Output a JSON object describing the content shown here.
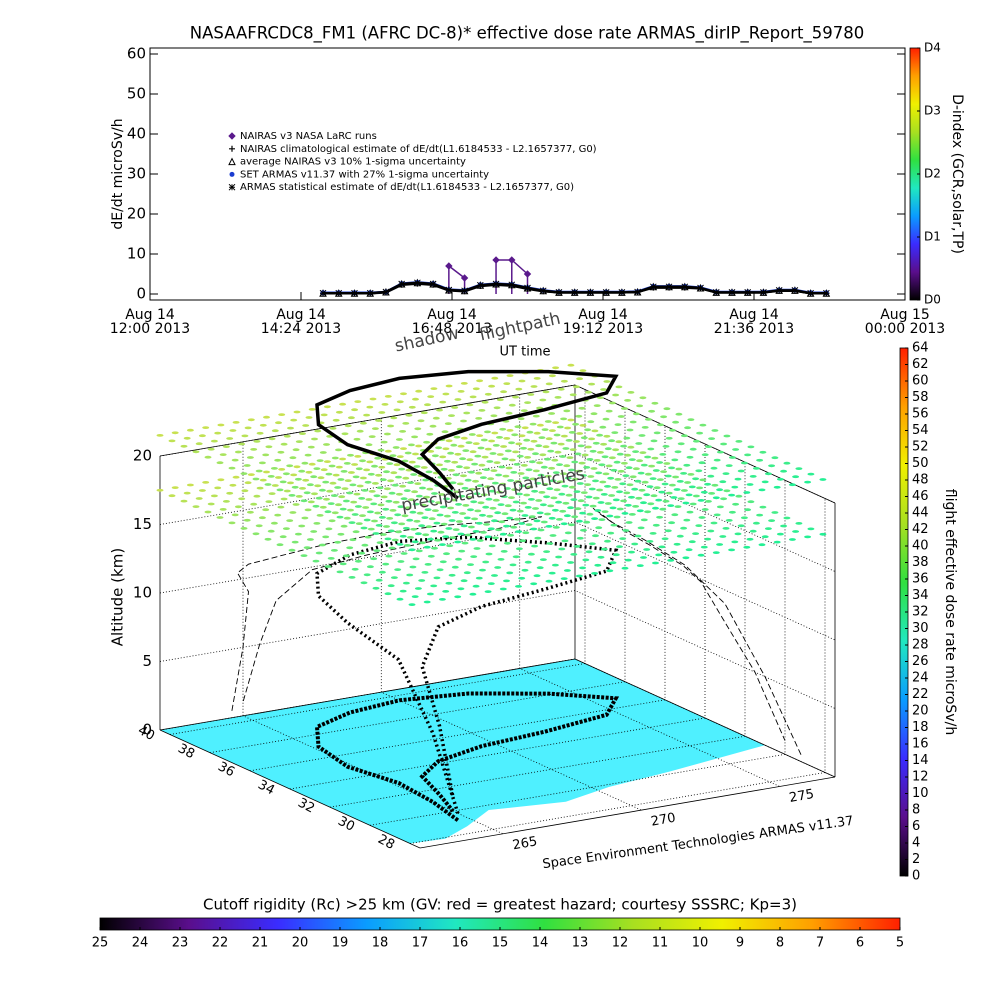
{
  "chart_data": [
    {
      "type": "line",
      "title": "NASAAFRCDC8_FM1 (AFRC DC-8)* effective dose rate ARMAS_dirIP_Report_59780",
      "y_label": "dE/dt microSv/h",
      "x_label": "UT time",
      "x": [
        "2013-08-14 14:45",
        "2013-08-14 15:00",
        "2013-08-14 15:15",
        "2013-08-14 15:30",
        "2013-08-14 15:45",
        "2013-08-14 16:00",
        "2013-08-14 16:15",
        "2013-08-14 16:30",
        "2013-08-14 16:45",
        "2013-08-14 17:00",
        "2013-08-14 17:15",
        "2013-08-14 17:30",
        "2013-08-14 17:45",
        "2013-08-14 18:00",
        "2013-08-14 18:15",
        "2013-08-14 18:30",
        "2013-08-14 18:45",
        "2013-08-14 19:00",
        "2013-08-14 19:15",
        "2013-08-14 19:30",
        "2013-08-14 19:45",
        "2013-08-14 20:00",
        "2013-08-14 20:15",
        "2013-08-14 20:30",
        "2013-08-14 20:45",
        "2013-08-14 21:00",
        "2013-08-14 21:15",
        "2013-08-14 21:30",
        "2013-08-14 21:45",
        "2013-08-14 22:00",
        "2013-08-14 22:15",
        "2013-08-14 22:30",
        "2013-08-14 22:45"
      ],
      "xlim": [
        "2013-08-14 12:00",
        "2013-08-15 00:00"
      ],
      "xticks": [
        {
          "value": "2013-08-14 12:00",
          "label": [
            "Aug 14",
            "12:00 2013"
          ]
        },
        {
          "value": "2013-08-14 14:24",
          "label": [
            "Aug 14",
            "14:24 2013"
          ]
        },
        {
          "value": "2013-08-14 16:48",
          "label": [
            "Aug 14",
            "16:48 2013"
          ]
        },
        {
          "value": "2013-08-14 19:12",
          "label": [
            "Aug 14",
            "19:12 2013"
          ]
        },
        {
          "value": "2013-08-14 21:36",
          "label": [
            "Aug 14",
            "21:36 2013"
          ]
        },
        {
          "value": "2013-08-15 00:00",
          "label": [
            "Aug 15",
            "00:00 2013"
          ]
        }
      ],
      "ylim": [
        0,
        60
      ],
      "yticks": [
        0,
        10,
        20,
        30,
        40,
        50,
        60
      ],
      "series": [
        {
          "name": "NAIRAS v3 NASA LaRC runs",
          "color": "#5a1a8c",
          "marker": "diamond",
          "values": [
            null,
            null,
            null,
            null,
            null,
            null,
            null,
            null,
            7,
            4,
            null,
            8.5,
            8.5,
            5,
            null,
            null,
            null,
            null,
            null,
            null,
            null,
            null,
            null,
            null,
            null,
            null,
            null,
            null,
            null,
            null,
            null,
            null,
            null
          ]
        },
        {
          "name": "NAIRAS climatological estimate of dE/dt(L1.6184533 - L2.1657377, G0)",
          "color": "#000000",
          "marker": "plus",
          "values": [
            0.2,
            0.2,
            0.2,
            0.2,
            0.4,
            2.3,
            2.6,
            2.3,
            0.9,
            0.7,
            2,
            2.3,
            2.1,
            1.3,
            0.7,
            0.4,
            0.4,
            0.4,
            0.4,
            0.4,
            0.5,
            1.6,
            1.6,
            1.6,
            1.4,
            0.4,
            0.4,
            0.4,
            0.4,
            0.8,
            0.8,
            0.2,
            0.2
          ]
        },
        {
          "name": "average NAIRAS v3 10% 1-sigma uncertainty",
          "color": "#000000",
          "marker": "triangle",
          "values": [
            0.2,
            0.2,
            0.2,
            0.2,
            0.5,
            2.5,
            2.8,
            2.5,
            1,
            0.8,
            2.2,
            2.5,
            2.3,
            1.5,
            0.8,
            0.4,
            0.4,
            0.4,
            0.4,
            0.4,
            0.5,
            1.8,
            1.8,
            1.8,
            1.5,
            0.4,
            0.4,
            0.4,
            0.4,
            0.9,
            0.9,
            0.2,
            0.2
          ]
        },
        {
          "name": "SET ARMAS v11.37 with 27% 1-sigma uncertainty",
          "color": "#1a3cd0",
          "marker": "dot",
          "values": [
            0.3,
            0.3,
            0.3,
            0.3,
            0.5,
            2.6,
            2.9,
            2.6,
            1.1,
            0.9,
            2.3,
            2.6,
            2.4,
            1.6,
            0.9,
            0.5,
            0.5,
            0.5,
            0.5,
            0.5,
            0.6,
            1.9,
            1.9,
            1.9,
            1.6,
            0.5,
            0.5,
            0.5,
            0.5,
            1,
            1,
            0.3,
            0.3
          ]
        },
        {
          "name": "ARMAS statistical estimate of dE/dt(L1.6184533 - L2.1657377, G0)",
          "color": "#000000",
          "marker": "asterisk",
          "values": [
            0.2,
            0.2,
            0.2,
            0.2,
            0.5,
            2.5,
            2.8,
            2.5,
            1,
            0.8,
            2.2,
            2.5,
            2.3,
            1.5,
            0.8,
            0.4,
            0.4,
            0.4,
            0.4,
            0.4,
            0.5,
            1.8,
            1.8,
            1.8,
            1.5,
            0.4,
            0.4,
            0.4,
            0.4,
            0.9,
            0.9,
            0.2,
            0.2
          ]
        }
      ]
    },
    {
      "type": "colorbar",
      "label": "D-index (GCR,solar,TP)",
      "orientation": "vertical",
      "lim": [
        0,
        4
      ],
      "ticks": [
        {
          "value": 0,
          "label": "D0"
        },
        {
          "value": 1,
          "label": "D1"
        },
        {
          "value": 2,
          "label": "D2"
        },
        {
          "value": 3,
          "label": "D3"
        },
        {
          "value": 4,
          "label": "D4"
        }
      ],
      "colors": [
        "#000000",
        "#5a0e8c",
        "#3a2cff",
        "#0a9cff",
        "#20e8c0",
        "#30e040",
        "#a8e020",
        "#f0f000",
        "#ffa000",
        "#ff2000"
      ]
    },
    {
      "type": "surface3d",
      "z_label": "Altitude (km)",
      "zlim": [
        0,
        20
      ],
      "zticks": [
        0,
        5,
        10,
        15,
        20
      ],
      "ylim": [
        40.5,
        27.5
      ],
      "yticks": [
        40,
        38,
        36,
        34,
        32,
        30,
        28
      ],
      "xlim": [
        262,
        277
      ],
      "xticks": [
        265,
        270,
        275
      ],
      "annotations": [
        "flightpath",
        "shadow",
        "precipitating particles"
      ],
      "credit": "Space Environment Technologies ARMAS v11.37"
    },
    {
      "type": "colorbar",
      "label": "flight effective dose rate microSv/h",
      "orientation": "vertical",
      "lim": [
        0,
        64
      ],
      "ticks": [
        0,
        2,
        4,
        6,
        8,
        10,
        12,
        14,
        16,
        18,
        20,
        22,
        24,
        26,
        28,
        30,
        32,
        34,
        36,
        38,
        40,
        42,
        44,
        46,
        48,
        50,
        52,
        54,
        56,
        58,
        60,
        62,
        64
      ],
      "colors": [
        "#000000",
        "#5a0e8c",
        "#3a2cff",
        "#0a9cff",
        "#20e8c0",
        "#30e040",
        "#a8e020",
        "#f0f000",
        "#ffa000",
        "#ff2000"
      ]
    },
    {
      "type": "colorbar",
      "label": "Cutoff rigidity (Rc) >25 km (GV: red = greatest hazard; courtesy SSSRC; Kp=3)",
      "orientation": "horizontal",
      "lim": [
        25,
        5
      ],
      "ticks": [
        25,
        24,
        23,
        22,
        21,
        20,
        19,
        18,
        17,
        16,
        15,
        14,
        13,
        12,
        11,
        10,
        9,
        8,
        7,
        6,
        5
      ],
      "colors": [
        "#000000",
        "#5a0e8c",
        "#3a2cff",
        "#0a9cff",
        "#20e8c0",
        "#30e040",
        "#a8e020",
        "#f0f000",
        "#ffa000",
        "#ff2000"
      ]
    }
  ]
}
